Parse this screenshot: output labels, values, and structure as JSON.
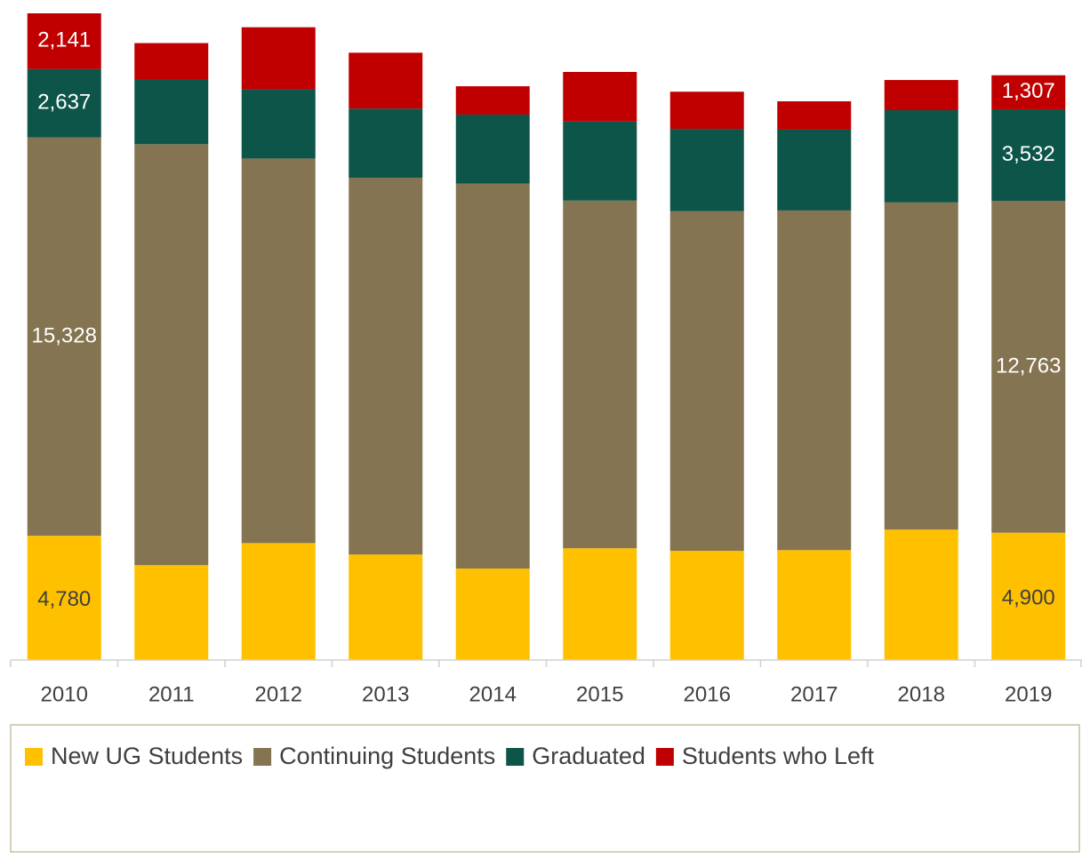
{
  "chart_data": {
    "type": "stacked_bar",
    "categories": [
      "2010",
      "2011",
      "2012",
      "2013",
      "2014",
      "2015",
      "2016",
      "2017",
      "2018",
      "2019"
    ],
    "series": [
      {
        "name": "New UG Students",
        "color": "#ffc000",
        "values": [
          4780,
          3650,
          4500,
          4060,
          3520,
          4300,
          4200,
          4230,
          5020,
          4900
        ],
        "value_labels": [
          "4,780",
          null,
          null,
          null,
          null,
          null,
          null,
          null,
          null,
          "4,900"
        ]
      },
      {
        "name": "Continuing Students",
        "color": "#847451",
        "values": [
          15328,
          16200,
          14800,
          14500,
          14810,
          13380,
          13070,
          13070,
          12590,
          12763
        ],
        "value_labels": [
          "15,328",
          null,
          null,
          null,
          null,
          null,
          null,
          null,
          null,
          "12,763"
        ]
      },
      {
        "name": "Graduated",
        "color": "#0d5449",
        "values": [
          2637,
          2490,
          2660,
          2660,
          2660,
          3040,
          3170,
          3110,
          3550,
          3532
        ],
        "value_labels": [
          "2,637",
          null,
          null,
          null,
          null,
          null,
          null,
          null,
          null,
          "3,532"
        ]
      },
      {
        "name": "Students who Left",
        "color": "#c00000",
        "values": [
          2141,
          1400,
          2390,
          2150,
          1090,
          1910,
          1430,
          1090,
          1160,
          1307
        ],
        "value_labels": [
          "2,141",
          null,
          null,
          null,
          null,
          null,
          null,
          null,
          null,
          "1,307"
        ]
      }
    ],
    "legend": "bottom"
  }
}
